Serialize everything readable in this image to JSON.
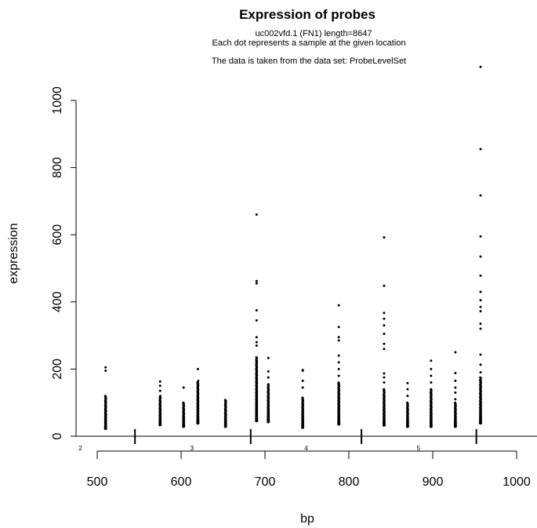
{
  "chart_data": {
    "type": "scatter",
    "title": "Expression of probes",
    "subtitle_lines": [
      "uc002vfd.1 (FN1) length=8647",
      "Each dot represents a sample at the given location",
      "The data is taken from the data set: ProbeLevelSet"
    ],
    "xlabel": "bp",
    "ylabel": "expression",
    "xlim": [
      480,
      1020
    ],
    "ylim": [
      -10,
      1100
    ],
    "x_ticks": [
      500,
      600,
      700,
      800,
      900,
      1000
    ],
    "x_tick_labels": [
      "500",
      "600",
      "700",
      "800",
      "900",
      "1000"
    ],
    "y_ticks": [
      0,
      200,
      400,
      600,
      800,
      1000
    ],
    "y_tick_labels": [
      "0",
      "200",
      "400",
      "600",
      "800",
      "1000"
    ],
    "grid": false,
    "legend": "none",
    "exon_boundaries": [
      545,
      683,
      815,
      952
    ],
    "exon_labels": [
      {
        "x": 480,
        "text": "2"
      },
      {
        "x": 613,
        "text": "3"
      },
      {
        "x": 749,
        "text": "4"
      },
      {
        "x": 883,
        "text": "5"
      }
    ],
    "probe_columns": [
      {
        "x": 510,
        "min": 22,
        "max": 120,
        "outliers": [
          195,
          205
        ]
      },
      {
        "x": 575,
        "min": 33,
        "max": 120,
        "outliers": [
          135,
          150,
          163
        ]
      },
      {
        "x": 603,
        "min": 28,
        "max": 100,
        "outliers": [
          145
        ]
      },
      {
        "x": 620,
        "min": 38,
        "max": 165,
        "outliers": [
          200
        ]
      },
      {
        "x": 653,
        "min": 28,
        "max": 108,
        "outliers": []
      },
      {
        "x": 690,
        "min": 45,
        "max": 235,
        "outliers": [
          270,
          280,
          295,
          345,
          375,
          455,
          462,
          660
        ]
      },
      {
        "x": 704,
        "min": 42,
        "max": 155,
        "outliers": [
          175,
          193,
          233
        ]
      },
      {
        "x": 745,
        "min": 25,
        "max": 115,
        "outliers": [
          145,
          165,
          195,
          197
        ]
      },
      {
        "x": 788,
        "min": 35,
        "max": 160,
        "outliers": [
          180,
          200,
          220,
          240,
          285,
          295,
          325,
          390
        ]
      },
      {
        "x": 842,
        "min": 32,
        "max": 140,
        "outliers": [
          160,
          175,
          187,
          260,
          275,
          305,
          330,
          350,
          367,
          448,
          592
        ]
      },
      {
        "x": 870,
        "min": 28,
        "max": 100,
        "outliers": [
          120,
          140,
          158
        ]
      },
      {
        "x": 898,
        "min": 28,
        "max": 140,
        "outliers": [
          160,
          180,
          200,
          225
        ]
      },
      {
        "x": 927,
        "min": 28,
        "max": 100,
        "outliers": [
          110,
          130,
          145,
          165,
          188,
          250
        ]
      },
      {
        "x": 957,
        "min": 38,
        "max": 175,
        "outliers": [
          190,
          213,
          243,
          320,
          335,
          372,
          385,
          405,
          430,
          478,
          535,
          595,
          717,
          855,
          1100
        ]
      }
    ]
  }
}
